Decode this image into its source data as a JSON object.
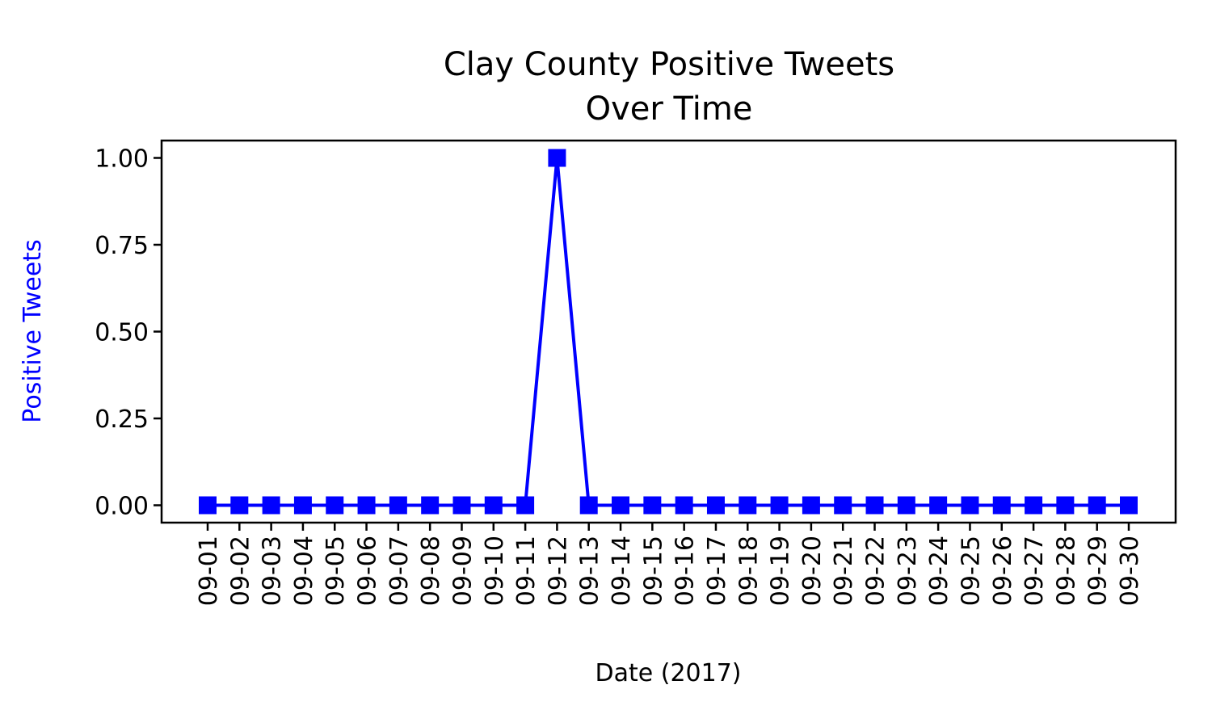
{
  "chart_data": {
    "type": "line",
    "title_lines": [
      "Clay County Positive Tweets",
      "Over Time"
    ],
    "xlabel": "Date (2017)",
    "ylabel": "Positive Tweets",
    "x": [
      "09-01",
      "09-02",
      "09-03",
      "09-04",
      "09-05",
      "09-06",
      "09-07",
      "09-08",
      "09-09",
      "09-10",
      "09-11",
      "09-12",
      "09-13",
      "09-14",
      "09-15",
      "09-16",
      "09-17",
      "09-18",
      "09-19",
      "09-20",
      "09-21",
      "09-22",
      "09-23",
      "09-24",
      "09-25",
      "09-26",
      "09-27",
      "09-28",
      "09-29",
      "09-30"
    ],
    "series": [
      {
        "values": [
          0,
          0,
          0,
          0,
          0,
          0,
          0,
          0,
          0,
          0,
          0,
          1,
          0,
          0,
          0,
          0,
          0,
          0,
          0,
          0,
          0,
          0,
          0,
          0,
          0,
          0,
          0,
          0,
          0,
          0
        ],
        "marker": "square",
        "color": "#0000ff"
      }
    ],
    "ylim": [
      -0.05,
      1.05
    ],
    "yticks": [
      "0.00",
      "0.25",
      "0.50",
      "0.75",
      "1.00"
    ],
    "ylabel_color": "#0000ff",
    "grid": false,
    "legend": "none"
  }
}
